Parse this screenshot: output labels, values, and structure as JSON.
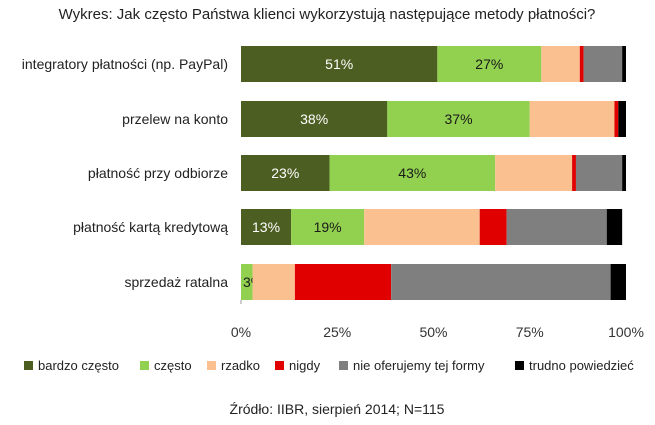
{
  "chart_data": {
    "type": "bar",
    "orientation": "horizontal",
    "stacked": true,
    "title": "Wykres: Jak często Państwa klienci wykorzystują następujące metody płatności?",
    "categories": [
      "integratory płatności (np. PayPal)",
      "przelew na konto",
      "płatność przy odbiorze",
      "płatność kartą kredytową",
      "sprzedaż ratalna"
    ],
    "series": [
      {
        "name": "bardzo często",
        "color": "#4d5e22",
        "values": [
          51,
          38,
          23,
          13,
          0
        ],
        "labels": [
          "51%",
          "38%",
          "23%",
          "13%",
          ""
        ],
        "label_color": "#ffffff"
      },
      {
        "name": "często",
        "color": "#92d050",
        "values": [
          27,
          37,
          43,
          19,
          3
        ],
        "labels": [
          "27%",
          "37%",
          "43%",
          "19%",
          "3%"
        ],
        "label_color": "#1a1a1a"
      },
      {
        "name": "rzadko",
        "color": "#fac090",
        "values": [
          10,
          22,
          20,
          30,
          11
        ],
        "labels": [
          "",
          "",
          "",
          "",
          ""
        ],
        "label_color": "#1a1a1a"
      },
      {
        "name": "nigdy",
        "color": "#e00000",
        "values": [
          1,
          1,
          1,
          7,
          25
        ],
        "labels": [
          "",
          "",
          "",
          "",
          ""
        ],
        "label_color": "#1a1a1a"
      },
      {
        "name": "nie oferujemy tej formy",
        "color": "#7f7f7f",
        "values": [
          10,
          0,
          12,
          26,
          57
        ],
        "labels": [
          "",
          "",
          "",
          "",
          ""
        ],
        "label_color": "#1a1a1a"
      },
      {
        "name": "trudno powiedzieć",
        "color": "#000000",
        "values": [
          1,
          2,
          1,
          4,
          4
        ],
        "labels": [
          "",
          "",
          "",
          "",
          ""
        ],
        "label_color": "#1a1a1a"
      }
    ],
    "xlim": [
      0,
      100
    ],
    "xticks": [
      "0%",
      "25%",
      "50%",
      "75%",
      "100%"
    ],
    "legend_position": "bottom",
    "grid": false
  },
  "footer": {
    "source": "Źródło: IIBR, sierpień 2014; N=115"
  }
}
